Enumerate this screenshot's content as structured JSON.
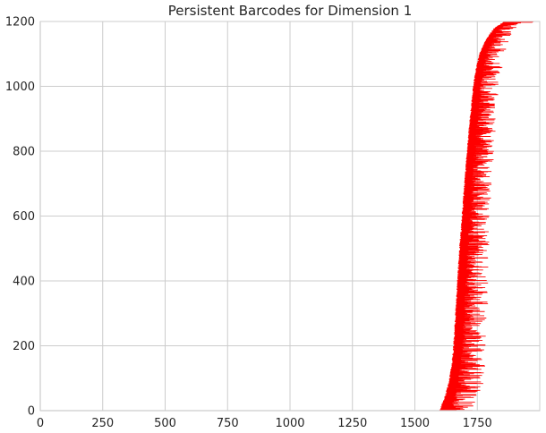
{
  "chart_data": {
    "type": "barcode",
    "title": "Persistent Barcodes for Dimension 1",
    "xlabel": "",
    "ylabel": "",
    "xlim": [
      0,
      2000
    ],
    "ylim": [
      0,
      1200
    ],
    "x_ticks": [
      0,
      250,
      500,
      750,
      1000,
      1250,
      1500,
      1750
    ],
    "y_ticks": [
      0,
      200,
      400,
      600,
      800,
      1000,
      1200
    ],
    "grid": true,
    "bar_color": "#ff0000",
    "n_bars": 1200,
    "birth_envelope": [
      [
        0,
        1600
      ],
      [
        10,
        1605
      ],
      [
        25,
        1612
      ],
      [
        50,
        1625
      ],
      [
        100,
        1640
      ],
      [
        150,
        1650
      ],
      [
        200,
        1656
      ],
      [
        300,
        1664
      ],
      [
        400,
        1672
      ],
      [
        500,
        1680
      ],
      [
        600,
        1690
      ],
      [
        700,
        1700
      ],
      [
        800,
        1710
      ],
      [
        900,
        1722
      ],
      [
        1000,
        1735
      ],
      [
        1050,
        1745
      ],
      [
        1100,
        1760
      ],
      [
        1150,
        1790
      ],
      [
        1180,
        1820
      ],
      [
        1200,
        1860
      ]
    ],
    "death_envelope": [
      [
        0,
        1750
      ],
      [
        100,
        1780
      ],
      [
        200,
        1790
      ],
      [
        300,
        1790
      ],
      [
        400,
        1800
      ],
      [
        500,
        1800
      ],
      [
        600,
        1800
      ],
      [
        700,
        1810
      ],
      [
        800,
        1820
      ],
      [
        900,
        1830
      ],
      [
        1000,
        1840
      ],
      [
        1100,
        1860
      ],
      [
        1150,
        1880
      ],
      [
        1180,
        1900
      ],
      [
        1200,
        2000
      ]
    ]
  }
}
